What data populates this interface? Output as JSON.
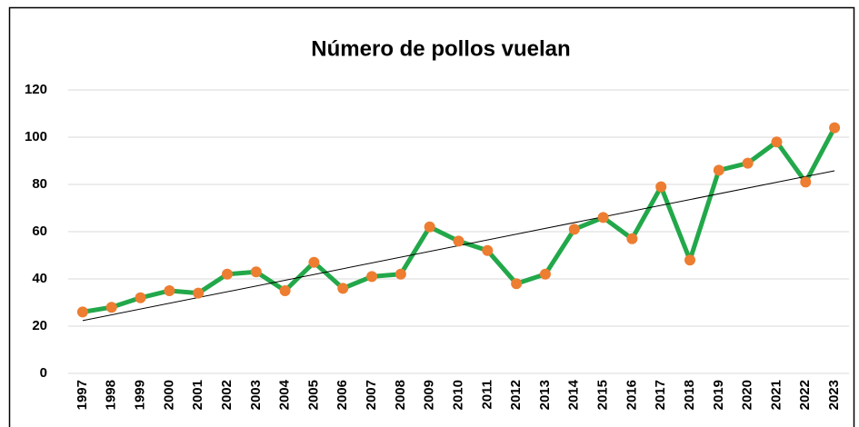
{
  "chart_data": {
    "type": "line",
    "title": "Número de pollos vuelan",
    "categories": [
      "1997",
      "1998",
      "1999",
      "2000",
      "2001",
      "2002",
      "2003",
      "2004",
      "2005",
      "2006",
      "2007",
      "2008",
      "2009",
      "2010",
      "2011",
      "2012",
      "2013",
      "2014",
      "2015",
      "2016",
      "2017",
      "2018",
      "2019",
      "2020",
      "2021",
      "2022",
      "2023"
    ],
    "series": [
      {
        "name": "Número de pollos vuelan",
        "color": "#22a84a",
        "marker_color": "#ed7d31",
        "values": [
          26,
          28,
          32,
          35,
          34,
          42,
          43,
          35,
          47,
          36,
          41,
          42,
          62,
          56,
          52,
          38,
          42,
          61,
          66,
          57,
          79,
          48,
          86,
          89,
          98,
          81,
          104
        ]
      }
    ],
    "ylim": [
      0,
      120
    ],
    "yticks": [
      0,
      20,
      40,
      60,
      80,
      100,
      120
    ],
    "grid": true,
    "trendline": "linear",
    "trendline_color": "#000000"
  }
}
